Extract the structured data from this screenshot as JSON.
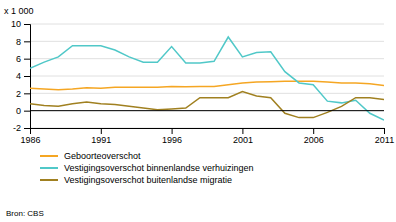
{
  "chart_data": {
    "type": "line",
    "ylabel": "x 1 000",
    "annotations": [
      "Bron: CBS"
    ],
    "x": [
      1986,
      1987,
      1988,
      1989,
      1990,
      1991,
      1992,
      1993,
      1994,
      1995,
      1996,
      1997,
      1998,
      1999,
      2000,
      2001,
      2002,
      2003,
      2004,
      2005,
      2006,
      2007,
      2008,
      2009,
      2010,
      2011
    ],
    "xlim": [
      1986,
      2011
    ],
    "xticks": [
      1986,
      1991,
      1996,
      2001,
      2006,
      2011
    ],
    "ylim": [
      -2,
      10
    ],
    "yticks": [
      -2,
      0,
      2,
      4,
      6,
      8,
      10
    ],
    "grid": true,
    "legend": "bottom-left",
    "series": [
      {
        "name": "Geboorteoverschot",
        "color": "#f5a623",
        "values": [
          2.6,
          2.5,
          2.4,
          2.5,
          2.65,
          2.6,
          2.7,
          2.7,
          2.7,
          2.7,
          2.8,
          2.75,
          2.8,
          2.8,
          3.0,
          3.2,
          3.3,
          3.35,
          3.4,
          3.4,
          3.4,
          3.3,
          3.2,
          3.2,
          3.1,
          2.9
        ]
      },
      {
        "name": "Vestigingsoverschot binnenlandse verhuizingen",
        "color": "#50c8c8",
        "values": [
          4.9,
          5.6,
          6.2,
          7.5,
          7.5,
          7.5,
          7.0,
          6.2,
          5.6,
          5.6,
          7.4,
          5.5,
          5.5,
          5.7,
          8.5,
          6.2,
          6.7,
          6.8,
          4.5,
          3.2,
          3.0,
          1.1,
          0.9,
          1.2,
          -0.3,
          -1.1
        ]
      },
      {
        "name": "Vestigingsoverschot buitenlandse migratie",
        "color": "#a08020",
        "values": [
          0.8,
          0.6,
          0.5,
          0.8,
          1.0,
          0.8,
          0.7,
          0.5,
          0.3,
          0.1,
          0.2,
          0.3,
          1.5,
          1.5,
          1.5,
          2.2,
          1.7,
          1.5,
          -0.3,
          -0.8,
          -0.8,
          -0.2,
          0.5,
          1.5,
          1.5,
          1.3
        ]
      }
    ]
  }
}
